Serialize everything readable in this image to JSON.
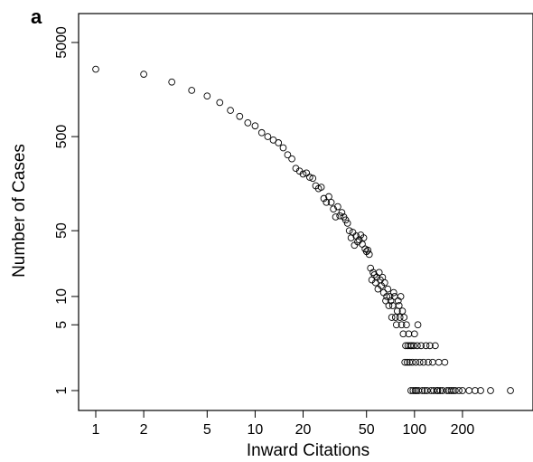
{
  "chart_data": {
    "type": "scatter",
    "panel_label": "a",
    "title": "",
    "xlabel": "Inward Citations",
    "ylabel": "Number of Cases",
    "x_scale": "log",
    "y_scale": "log",
    "xlim": [
      0.8,
      500
    ],
    "ylim": [
      0.75,
      9000
    ],
    "x_ticks": [
      1,
      2,
      5,
      10,
      20,
      50,
      100,
      200
    ],
    "x_tick_labels": [
      "1",
      "2",
      "5",
      "10",
      "20",
      "50",
      "100",
      "200"
    ],
    "y_ticks": [
      1,
      5,
      10,
      50,
      500,
      5000
    ],
    "y_tick_labels": [
      "1",
      "5",
      "10",
      "50",
      "500",
      "5000"
    ],
    "grid": false,
    "marker": "open-circle",
    "color": "#000000",
    "points": [
      [
        1,
        2600
      ],
      [
        2,
        2300
      ],
      [
        3,
        1900
      ],
      [
        4,
        1550
      ],
      [
        5,
        1350
      ],
      [
        6,
        1150
      ],
      [
        7,
        950
      ],
      [
        8,
        820
      ],
      [
        9,
        700
      ],
      [
        10,
        650
      ],
      [
        11,
        550
      ],
      [
        12,
        500
      ],
      [
        13,
        460
      ],
      [
        14,
        430
      ],
      [
        15,
        380
      ],
      [
        16,
        320
      ],
      [
        17,
        290
      ],
      [
        18,
        230
      ],
      [
        19,
        215
      ],
      [
        20,
        200
      ],
      [
        21,
        205
      ],
      [
        22,
        185
      ],
      [
        23,
        180
      ],
      [
        24,
        150
      ],
      [
        25,
        140
      ],
      [
        26,
        145
      ],
      [
        27,
        110
      ],
      [
        28,
        100
      ],
      [
        29,
        115
      ],
      [
        30,
        100
      ],
      [
        31,
        85
      ],
      [
        32,
        70
      ],
      [
        33,
        90
      ],
      [
        34,
        72
      ],
      [
        35,
        78
      ],
      [
        36,
        70
      ],
      [
        37,
        65
      ],
      [
        38,
        60
      ],
      [
        39,
        50
      ],
      [
        40,
        42
      ],
      [
        41,
        48
      ],
      [
        42,
        35
      ],
      [
        43,
        44
      ],
      [
        44,
        38
      ],
      [
        45,
        40
      ],
      [
        46,
        45
      ],
      [
        47,
        36
      ],
      [
        48,
        42
      ],
      [
        49,
        32
      ],
      [
        50,
        30
      ],
      [
        51,
        31
      ],
      [
        52,
        28
      ],
      [
        53,
        20
      ],
      [
        54,
        15
      ],
      [
        55,
        18
      ],
      [
        56,
        17
      ],
      [
        57,
        14
      ],
      [
        58,
        16
      ],
      [
        59,
        12
      ],
      [
        60,
        18
      ],
      [
        61,
        15
      ],
      [
        62,
        13
      ],
      [
        63,
        16
      ],
      [
        64,
        11
      ],
      [
        65,
        14
      ],
      [
        66,
        9
      ],
      [
        67,
        10
      ],
      [
        68,
        12
      ],
      [
        69,
        8
      ],
      [
        70,
        10
      ],
      [
        71,
        9
      ],
      [
        72,
        6
      ],
      [
        73,
        8
      ],
      [
        74,
        11
      ],
      [
        75,
        10
      ],
      [
        76,
        6
      ],
      [
        77,
        5
      ],
      [
        78,
        7
      ],
      [
        79,
        9
      ],
      [
        80,
        8
      ],
      [
        81,
        6
      ],
      [
        82,
        10
      ],
      [
        83,
        5
      ],
      [
        84,
        7
      ],
      [
        85,
        4
      ],
      [
        86,
        6
      ],
      [
        87,
        2
      ],
      [
        88,
        3
      ],
      [
        89,
        5
      ],
      [
        90,
        2
      ],
      [
        91,
        3
      ],
      [
        92,
        4
      ],
      [
        93,
        2
      ],
      [
        94,
        3
      ],
      [
        95,
        1
      ],
      [
        96,
        3
      ],
      [
        97,
        2
      ],
      [
        98,
        1
      ],
      [
        99,
        3
      ],
      [
        100,
        4
      ],
      [
        101,
        1
      ],
      [
        102,
        2
      ],
      [
        103,
        1
      ],
      [
        104,
        3
      ],
      [
        105,
        5
      ],
      [
        106,
        1
      ],
      [
        108,
        2
      ],
      [
        110,
        3
      ],
      [
        112,
        1
      ],
      [
        114,
        2
      ],
      [
        116,
        1
      ],
      [
        118,
        3
      ],
      [
        120,
        1
      ],
      [
        122,
        2
      ],
      [
        125,
        3
      ],
      [
        127,
        1
      ],
      [
        130,
        2
      ],
      [
        132,
        1
      ],
      [
        135,
        3
      ],
      [
        138,
        1
      ],
      [
        140,
        1
      ],
      [
        142,
        2
      ],
      [
        145,
        1
      ],
      [
        150,
        1
      ],
      [
        155,
        2
      ],
      [
        160,
        1
      ],
      [
        165,
        1
      ],
      [
        170,
        1
      ],
      [
        175,
        1
      ],
      [
        180,
        1
      ],
      [
        190,
        1
      ],
      [
        200,
        1
      ],
      [
        220,
        1
      ],
      [
        240,
        1
      ],
      [
        260,
        1
      ],
      [
        300,
        1
      ],
      [
        400,
        1
      ]
    ]
  }
}
